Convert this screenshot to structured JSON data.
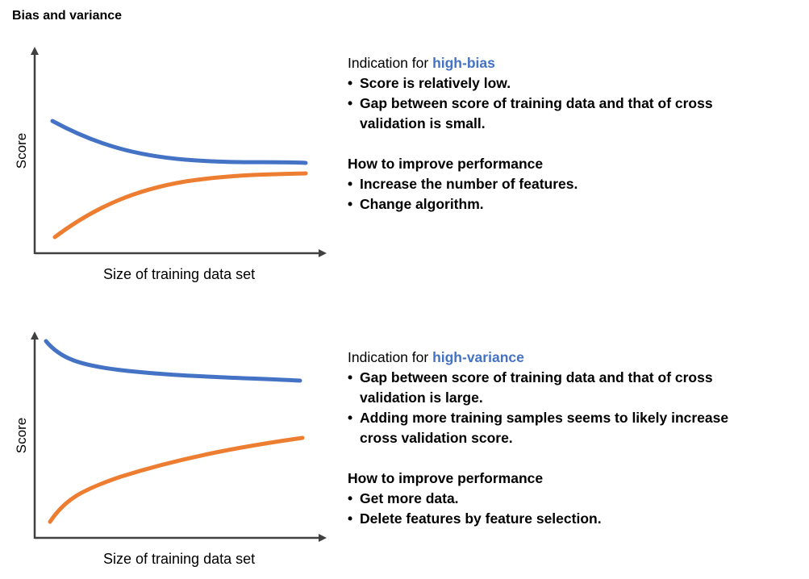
{
  "title": "Bias and variance",
  "colors": {
    "training": "#4472C4",
    "validation": "#ED7D31",
    "accent": "#4472C4",
    "axis": "#404040"
  },
  "sections": [
    {
      "chart": {
        "ylabel": "Score",
        "xlabel": "Size of training data set"
      },
      "indication_prefix": "Indication for ",
      "indication_term": "high-bias",
      "indications": [
        {
          "lines": [
            "Score is relatively low."
          ]
        },
        {
          "lines": [
            "Gap between score of training data and that of cross",
            "validation is small."
          ]
        }
      ],
      "improve_heading": "How to improve performance",
      "improvements": [
        {
          "lines": [
            "Increase the number of features."
          ]
        },
        {
          "lines": [
            "Change algorithm."
          ]
        }
      ]
    },
    {
      "chart": {
        "ylabel": "Score",
        "xlabel": "Size of training data set"
      },
      "indication_prefix": "Indication for ",
      "indication_term": "high-variance",
      "indications": [
        {
          "lines": [
            "Gap between score of training data and that of cross",
            "validation is large."
          ]
        },
        {
          "lines": [
            "Adding more training samples seems to likely increase",
            "cross validation score."
          ]
        }
      ],
      "improve_heading": "How to improve performance",
      "improvements": [
        {
          "lines": [
            "Get more data."
          ]
        },
        {
          "lines": [
            "Delete features by feature selection."
          ]
        }
      ]
    }
  ]
}
